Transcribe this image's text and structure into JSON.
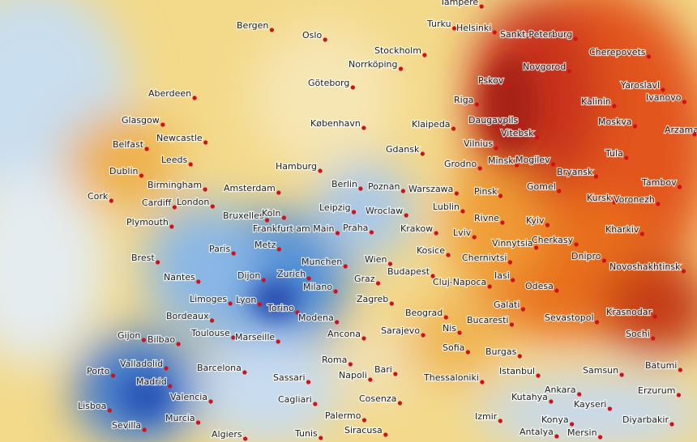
{
  "map": {
    "cities": [
      "Tampere",
      "Bergen",
      "Oslo",
      "Stockholm",
      "Turku",
      "Helsinki",
      "Sankt-Peterburg",
      "Cherepovets",
      "Norrköping",
      "Novgorod",
      "Göteborg",
      "Pskov",
      "Yaroslavl",
      "Riga",
      "Kalinin",
      "Ivanovo",
      "Aberdeen",
      "Glasgow",
      "København",
      "Daugavpils",
      "Moskva",
      "Klaipeda",
      "Vitebsk",
      "Arzamas",
      "Newcastle",
      "Belfast",
      "Vilnius",
      "Minsk",
      "Mogilev",
      "Tula",
      "Gdansk",
      "Leeds",
      "Hamburg",
      "Grodno",
      "Dublin",
      "Bryansk",
      "Berlin",
      "Poznan",
      "Warszawa",
      "Birmingham",
      "Amsterdam",
      "Tambov",
      "Cork",
      "Cardiff",
      "London",
      "Gomel",
      "Pinsk",
      "Kursk",
      "Voronezh",
      "Leipzig",
      "Wroclaw",
      "Lublin",
      "Plymouth",
      "Bruxelles",
      "Koln",
      "Rivne",
      "Kyiv",
      "Kharkiv",
      "Frankfurt am Main",
      "Praha",
      "Krakow",
      "Lviv",
      "Vinnytsia",
      "Cherkasy",
      "Paris",
      "Brest",
      "Metz",
      "Kosice",
      "Dnipro",
      "Novoshakhtinsk",
      "Munchen",
      "Wien",
      "Chernivtsi",
      "Nantes",
      "Dijon",
      "Zurich",
      "Budapest",
      "Cluj-Napoca",
      "Iasi",
      "Graz",
      "Odesa",
      "Limoges",
      "Lyon",
      "Milano",
      "Zagreb",
      "Krasnodar",
      "Bordeaux",
      "Torino",
      "Galati",
      "Beograd",
      "Bucaresti",
      "Sevastopol",
      "Modena",
      "Gijon",
      "Bilbao",
      "Toulouse",
      "Marseille",
      "Ancona",
      "Sarajevo",
      "Nis",
      "Sochi",
      "Sofia",
      "Burgas",
      "Porto",
      "Valladolid",
      "Barcelona",
      "Roma",
      "Bari",
      "Samsun",
      "Batumi",
      "Madrid",
      "Napoli",
      "Sassari",
      "Thessaloniki",
      "Istanbul",
      "Valencia",
      "Ankara",
      "Erzurum",
      "Cosenza",
      "Cagliari",
      "Lisboa",
      "Kutahya",
      "Kayseri",
      "Murcia",
      "Palermo",
      "Izmir",
      "Konya",
      "Diyarbakir",
      "Sevilla",
      "Algiers",
      "Tunis",
      "Siracusa",
      "Antalya",
      "Mersin"
    ]
  }
}
